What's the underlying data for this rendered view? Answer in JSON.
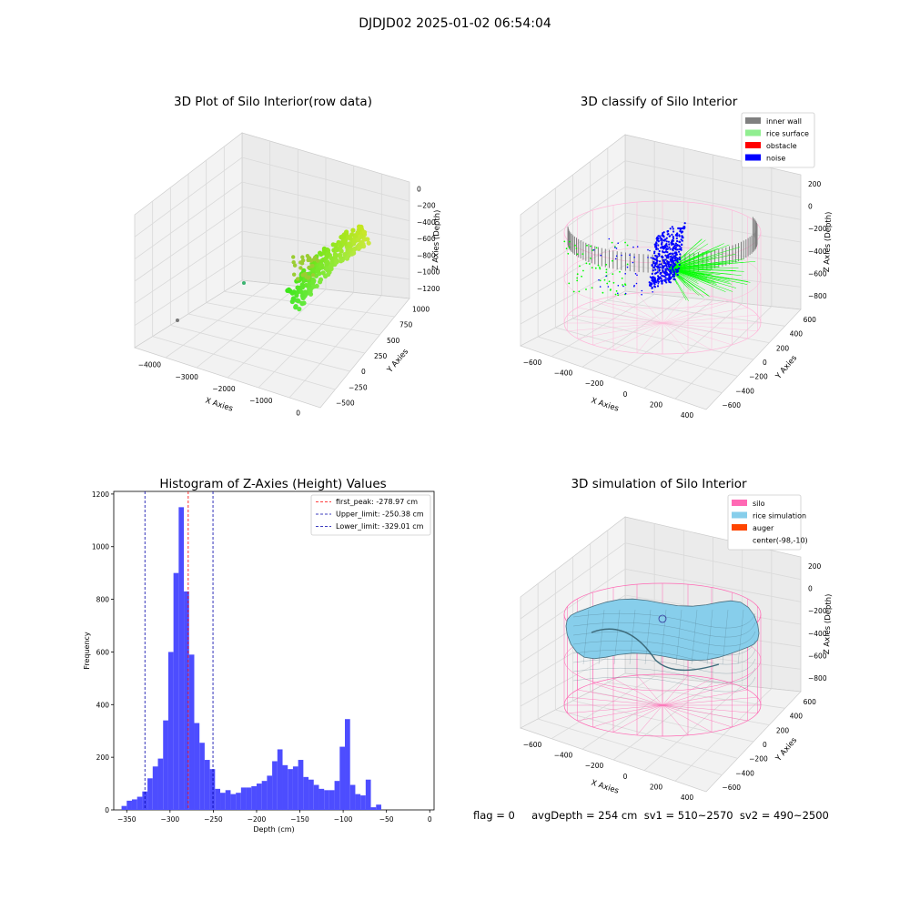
{
  "figure": {
    "title": "DJDJD02 2025-01-02 06:54:04",
    "status_text": "flag = 0     avgDepth = 254 cm  sv1 = 510~2570  sv2 = 490~2500"
  },
  "colors": {
    "pane_floor": "#f2f2f2",
    "grid": "#d9d9d9",
    "inner_wall": "#808080",
    "rice_surface": "#90ee90",
    "rice_points": "#00ff00",
    "obstacle": "#ff0000",
    "noise": "#0000ff",
    "silo": "#ff69b4",
    "rice_simulation": "#87ceeb",
    "auger": "#ff4500",
    "histogram_bar": "#4d4dff",
    "peak_line": "#ff0000",
    "limit_line": "#0000aa"
  },
  "panels": {
    "raw": {
      "title": "3D Plot of Silo Interior(row data)",
      "xlabel": "X Axies",
      "ylabel": "Y Axies",
      "zlabel": "Z Axies (Depth)",
      "xticks": [
        "−4000",
        "−3000",
        "−2000",
        "−1000",
        "0"
      ],
      "yticks": [
        "−500",
        "−250",
        "0",
        "250",
        "500",
        "750",
        "1000"
      ],
      "zticks": [
        "0",
        "−200",
        "−400",
        "−600",
        "−800",
        "−1000",
        "−1200"
      ]
    },
    "classify": {
      "title": "3D classify of Silo Interior",
      "xlabel": "X Axies",
      "ylabel": "Y Axies",
      "zlabel": "Z Axies (Depth)",
      "xticks": [
        "−600",
        "−400",
        "−200",
        "0",
        "200",
        "400"
      ],
      "yticks": [
        "−600",
        "−400",
        "−200",
        "0",
        "200",
        "400",
        "600"
      ],
      "zticks": [
        "200",
        "0",
        "−200",
        "−400",
        "−600",
        "−800"
      ],
      "legend": [
        "inner wall",
        "rice surface",
        "obstacle",
        "noise"
      ]
    },
    "simulation": {
      "title": "3D simulation of Silo Interior",
      "xlabel": "X Axies",
      "ylabel": "Y Axies",
      "zlabel": "Z Axies (Depth)",
      "xticks": [
        "−600",
        "−400",
        "−200",
        "0",
        "200",
        "400"
      ],
      "yticks": [
        "−600",
        "−400",
        "−200",
        "0",
        "200",
        "400",
        "600"
      ],
      "zticks": [
        "200",
        "0",
        "−200",
        "−400",
        "−600",
        "−800"
      ],
      "legend": [
        "silo",
        "rice simulation",
        "auger",
        "center(-98,-10)"
      ]
    }
  },
  "chart_data": [
    {
      "type": "scatter",
      "title": "3D Plot of Silo Interior(row data)",
      "xlabel": "X Axies",
      "ylabel": "Y Axies",
      "zlabel": "Z Axies (Depth)",
      "xlim": [
        -4400,
        300
      ],
      "ylim": [
        -600,
        1100
      ],
      "zlim": [
        -1300,
        50
      ],
      "colormap": "viridis-like (green to yellow)"
    },
    {
      "type": "scatter",
      "title": "3D classify of Silo Interior",
      "xlabel": "X Axies",
      "ylabel": "Y Axies",
      "zlabel": "Z Axies (Depth)",
      "xlim": [
        -700,
        500
      ],
      "ylim": [
        -650,
        650
      ],
      "zlim": [
        -900,
        300
      ],
      "series": [
        {
          "name": "inner wall"
        },
        {
          "name": "rice surface"
        },
        {
          "name": "obstacle"
        },
        {
          "name": "noise"
        }
      ],
      "legend_position": "top-right"
    },
    {
      "type": "histogram",
      "title": "Histogram of Z-Axies (Height) Values",
      "xlabel": "Depth (cm)",
      "ylabel": "Frequency",
      "xlim": [
        -365,
        5
      ],
      "ylim": [
        0,
        1210
      ],
      "xticks": [
        -350,
        -300,
        -250,
        -200,
        -150,
        -100,
        -50,
        0
      ],
      "yticks": [
        0,
        200,
        400,
        600,
        800,
        1000,
        1200
      ],
      "bin_start": -356,
      "bin_width": 6,
      "values": [
        15,
        35,
        40,
        50,
        70,
        120,
        165,
        195,
        340,
        600,
        900,
        1150,
        830,
        590,
        330,
        255,
        190,
        155,
        80,
        65,
        75,
        60,
        65,
        85,
        85,
        90,
        100,
        110,
        130,
        185,
        230,
        170,
        155,
        165,
        190,
        125,
        115,
        95,
        80,
        75,
        75,
        110,
        240,
        345,
        95,
        60,
        55,
        115,
        10,
        20
      ],
      "vlines": [
        {
          "name": "first_peak: -278.97 cm",
          "x": -278.97,
          "style": "peak"
        },
        {
          "name": "Upper_limit: -250.38 cm",
          "x": -250.38,
          "style": "limit"
        },
        {
          "name": "Lower_limit: -329.01 cm",
          "x": -329.01,
          "style": "limit"
        }
      ],
      "legend_position": "top-right"
    },
    {
      "type": "surface",
      "title": "3D simulation of Silo Interior",
      "xlabel": "X Axies",
      "ylabel": "Y Axies",
      "zlabel": "Z Axies (Depth)",
      "xlim": [
        -700,
        500
      ],
      "ylim": [
        -650,
        650
      ],
      "zlim": [
        -900,
        300
      ],
      "series": [
        {
          "name": "silo"
        },
        {
          "name": "rice simulation"
        },
        {
          "name": "auger"
        }
      ],
      "annotations": [
        "center(-98,-10)"
      ],
      "legend_position": "top-right"
    }
  ]
}
